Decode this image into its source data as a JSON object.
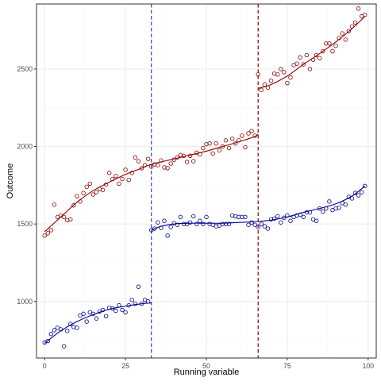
{
  "chart_data": {
    "type": "scatter",
    "title": "",
    "xlabel": "Running variable",
    "ylabel": "Outcome",
    "xlim": [
      -2.5,
      102.5
    ],
    "ylim": [
      635,
      2920
    ],
    "x_ticks": [
      0,
      25,
      50,
      75,
      100
    ],
    "y_ticks": [
      1000,
      1500,
      2000,
      2500
    ],
    "grid": true,
    "legend": "none",
    "theme": {
      "panel_border_color": "#333333",
      "major_grid_color": "#ebebeb",
      "minor_grid_color": "#f5f5f5"
    },
    "cutoffs": [
      {
        "x": 33,
        "color": "#2c3ec4",
        "style": "dashed"
      },
      {
        "x": 66,
        "color": "#8b0000",
        "style": "dashed"
      }
    ],
    "series": [
      {
        "color": "#8b0000",
        "marker": "open-circle",
        "points": [
          [
            0,
            1425
          ],
          [
            1,
            1440
          ],
          [
            2,
            1460
          ],
          [
            3,
            1625
          ],
          [
            4,
            1545
          ],
          [
            5,
            1555
          ],
          [
            6,
            1545
          ],
          [
            7,
            1525
          ],
          [
            8,
            1530
          ],
          [
            9,
            1620
          ],
          [
            10,
            1680
          ],
          [
            11,
            1645
          ],
          [
            12,
            1700
          ],
          [
            13,
            1740
          ],
          [
            14,
            1760
          ],
          [
            15,
            1690
          ],
          [
            16,
            1705
          ],
          [
            17,
            1725
          ],
          [
            18,
            1720
          ],
          [
            19,
            1755
          ],
          [
            20,
            1830
          ],
          [
            21,
            1790
          ],
          [
            22,
            1810
          ],
          [
            23,
            1760
          ],
          [
            24,
            1790
          ],
          [
            25,
            1850
          ],
          [
            26,
            1785
          ],
          [
            27,
            1830
          ],
          [
            28,
            1930
          ],
          [
            29,
            1905
          ],
          [
            30,
            1860
          ],
          [
            31,
            1880
          ],
          [
            32,
            1920
          ],
          [
            33,
            1870
          ],
          [
            34,
            1885
          ],
          [
            35,
            1880
          ],
          [
            36,
            1910
          ],
          [
            37,
            1865
          ],
          [
            38,
            1860
          ],
          [
            39,
            1890
          ],
          [
            40,
            1915
          ],
          [
            41,
            1930
          ],
          [
            42,
            1945
          ],
          [
            43,
            1940
          ],
          [
            44,
            1900
          ],
          [
            45,
            1940
          ],
          [
            46,
            1905
          ],
          [
            47,
            1960
          ],
          [
            48,
            1950
          ],
          [
            49,
            1990
          ],
          [
            50,
            2015
          ],
          [
            51,
            2020
          ],
          [
            52,
            1955
          ],
          [
            53,
            2020
          ],
          [
            54,
            1975
          ],
          [
            55,
            2000
          ],
          [
            56,
            2040
          ],
          [
            57,
            1990
          ],
          [
            58,
            2050
          ],
          [
            59,
            2020
          ],
          [
            60,
            2040
          ],
          [
            61,
            2070
          ],
          [
            62,
            1995
          ],
          [
            63,
            2085
          ],
          [
            64,
            2100
          ],
          [
            65,
            2070
          ],
          [
            66,
            2465
          ],
          [
            67,
            2365
          ],
          [
            68,
            2400
          ],
          [
            69,
            2380
          ],
          [
            70,
            2425
          ],
          [
            71,
            2470
          ],
          [
            72,
            2465
          ],
          [
            73,
            2500
          ],
          [
            74,
            2480
          ],
          [
            75,
            2410
          ],
          [
            76,
            2445
          ],
          [
            77,
            2525
          ],
          [
            78,
            2535
          ],
          [
            79,
            2575
          ],
          [
            80,
            2530
          ],
          [
            81,
            2590
          ],
          [
            82,
            2500
          ],
          [
            83,
            2560
          ],
          [
            84,
            2590
          ],
          [
            85,
            2570
          ],
          [
            86,
            2615
          ],
          [
            87,
            2665
          ],
          [
            88,
            2665
          ],
          [
            89,
            2615
          ],
          [
            90,
            2650
          ],
          [
            91,
            2700
          ],
          [
            92,
            2730
          ],
          [
            93,
            2690
          ],
          [
            94,
            2745
          ],
          [
            95,
            2775
          ],
          [
            96,
            2800
          ],
          [
            97,
            2890
          ],
          [
            98,
            2840
          ],
          [
            99,
            2850
          ]
        ],
        "fits": [
          {
            "x": [
              0,
              5,
              10,
              15,
              20,
              25,
              30,
              33,
              40,
              45,
              50,
              55,
              60,
              65,
              66
            ],
            "y": [
              1450,
              1545,
              1640,
              1715,
              1770,
              1820,
              1860,
              1885,
              1920,
              1945,
              1970,
              2000,
              2030,
              2065,
              2080
            ]
          },
          {
            "x": [
              66,
              70,
              75,
              80,
              85,
              90,
              95,
              99
            ],
            "y": [
              2375,
              2400,
              2455,
              2530,
              2600,
              2675,
              2760,
              2840
            ]
          }
        ]
      },
      {
        "color": "#00008b",
        "marker": "open-circle",
        "points": [
          [
            0,
            735
          ],
          [
            1,
            745
          ],
          [
            2,
            790
          ],
          [
            3,
            815
          ],
          [
            4,
            830
          ],
          [
            5,
            820
          ],
          [
            6,
            710
          ],
          [
            7,
            810
          ],
          [
            8,
            855
          ],
          [
            9,
            835
          ],
          [
            10,
            830
          ],
          [
            11,
            910
          ],
          [
            12,
            920
          ],
          [
            13,
            870
          ],
          [
            14,
            930
          ],
          [
            15,
            920
          ],
          [
            16,
            890
          ],
          [
            17,
            935
          ],
          [
            18,
            945
          ],
          [
            19,
            905
          ],
          [
            20,
            960
          ],
          [
            21,
            955
          ],
          [
            22,
            940
          ],
          [
            23,
            975
          ],
          [
            24,
            945
          ],
          [
            25,
            930
          ],
          [
            26,
            975
          ],
          [
            27,
            1010
          ],
          [
            28,
            985
          ],
          [
            29,
            1095
          ],
          [
            30,
            985
          ],
          [
            31,
            1010
          ],
          [
            32,
            1000
          ],
          [
            33,
            1460
          ],
          [
            34,
            1470
          ],
          [
            35,
            1510
          ],
          [
            36,
            1475
          ],
          [
            37,
            1520
          ],
          [
            38,
            1425
          ],
          [
            39,
            1480
          ],
          [
            40,
            1505
          ],
          [
            41,
            1495
          ],
          [
            42,
            1545
          ],
          [
            43,
            1500
          ],
          [
            44,
            1500
          ],
          [
            45,
            1510
          ],
          [
            46,
            1550
          ],
          [
            47,
            1500
          ],
          [
            48,
            1520
          ],
          [
            49,
            1500
          ],
          [
            50,
            1545
          ],
          [
            51,
            1500
          ],
          [
            52,
            1495
          ],
          [
            53,
            1485
          ],
          [
            54,
            1490
          ],
          [
            55,
            1500
          ],
          [
            56,
            1500
          ],
          [
            57,
            1500
          ],
          [
            58,
            1555
          ],
          [
            59,
            1550
          ],
          [
            60,
            1545
          ],
          [
            61,
            1545
          ],
          [
            62,
            1545
          ],
          [
            63,
            1495
          ],
          [
            64,
            1510
          ],
          [
            65,
            1495
          ],
          [
            66,
            1480
          ],
          [
            67,
            1500
          ],
          [
            68,
            1485
          ],
          [
            69,
            1470
          ],
          [
            70,
            1530
          ],
          [
            71,
            1535
          ],
          [
            72,
            1550
          ],
          [
            73,
            1510
          ],
          [
            74,
            1540
          ],
          [
            75,
            1555
          ],
          [
            76,
            1520
          ],
          [
            77,
            1545
          ],
          [
            78,
            1555
          ],
          [
            79,
            1560
          ],
          [
            80,
            1545
          ],
          [
            81,
            1575
          ],
          [
            82,
            1575
          ],
          [
            83,
            1530
          ],
          [
            84,
            1520
          ],
          [
            85,
            1600
          ],
          [
            86,
            1580
          ],
          [
            87,
            1600
          ],
          [
            88,
            1645
          ],
          [
            89,
            1590
          ],
          [
            90,
            1600
          ],
          [
            91,
            1605
          ],
          [
            92,
            1635
          ],
          [
            93,
            1625
          ],
          [
            94,
            1675
          ],
          [
            95,
            1665
          ],
          [
            96,
            1700
          ],
          [
            97,
            1685
          ],
          [
            98,
            1705
          ],
          [
            99,
            1745
          ]
        ],
        "fits": [
          {
            "x": [
              0,
              5,
              10,
              15,
              20,
              25,
              30,
              33
            ],
            "y": [
              730,
              810,
              870,
              915,
              950,
              970,
              985,
              990
            ]
          },
          {
            "x": [
              33,
              36,
              40,
              45,
              50,
              55,
              60,
              65,
              70,
              75,
              80,
              85,
              90,
              95,
              99
            ],
            "y": [
              1460,
              1485,
              1500,
              1505,
              1505,
              1505,
              1510,
              1515,
              1525,
              1545,
              1575,
              1600,
              1630,
              1680,
              1745
            ]
          }
        ]
      }
    ]
  }
}
